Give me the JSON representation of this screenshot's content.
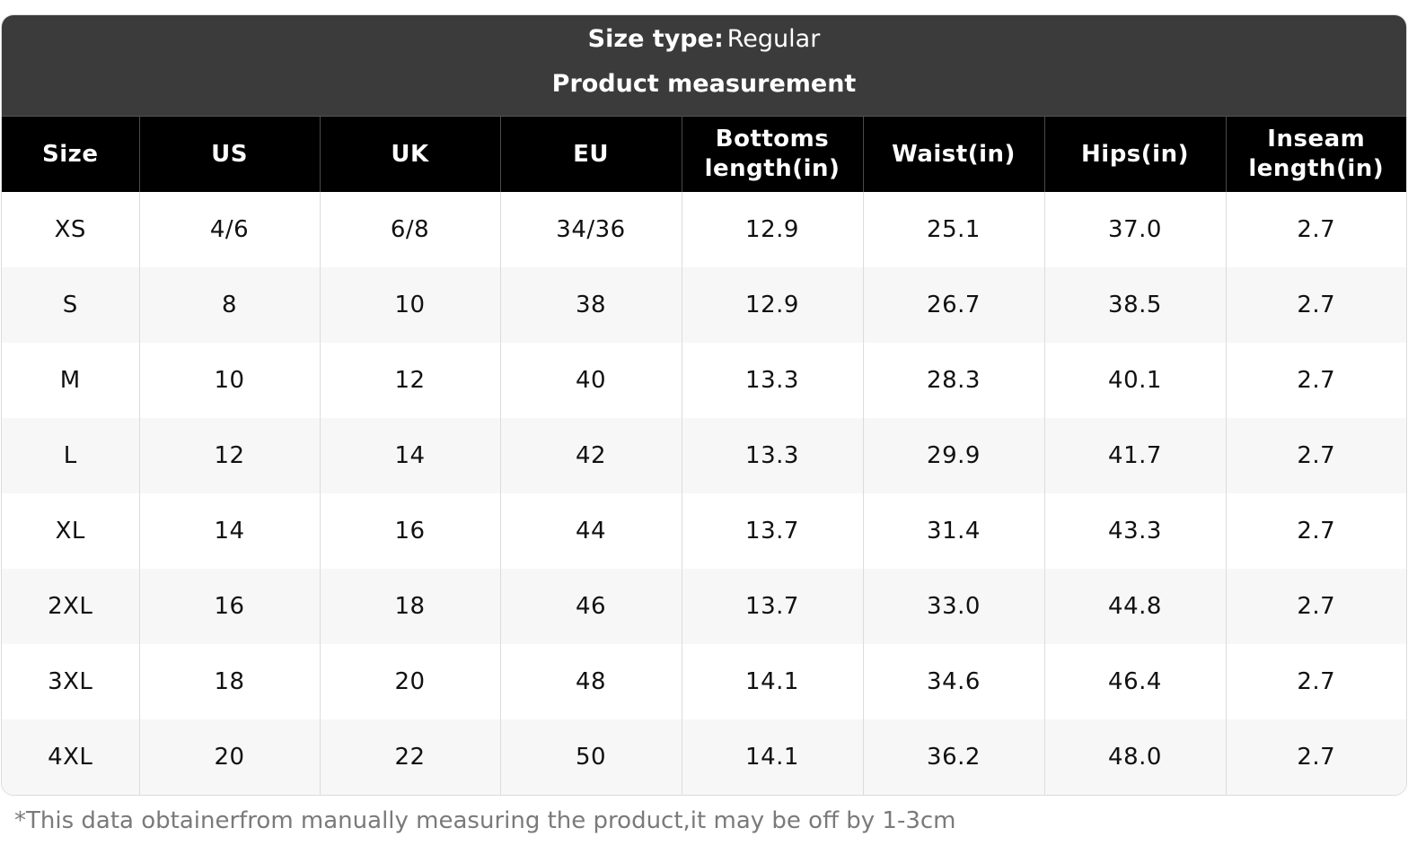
{
  "header": {
    "size_type_label": "Size type:",
    "size_type_value": "Regular",
    "title": "Product measurement"
  },
  "table": {
    "columns": [
      "Size",
      "US",
      "UK",
      "EU",
      "Bottoms length(in)",
      "Waist(in)",
      "Hips(in)",
      "Inseam length(in)"
    ],
    "rows": [
      [
        "XS",
        "4/6",
        "6/8",
        "34/36",
        "12.9",
        "25.1",
        "37.0",
        "2.7"
      ],
      [
        "S",
        "8",
        "10",
        "38",
        "12.9",
        "26.7",
        "38.5",
        "2.7"
      ],
      [
        "M",
        "10",
        "12",
        "40",
        "13.3",
        "28.3",
        "40.1",
        "2.7"
      ],
      [
        "L",
        "12",
        "14",
        "42",
        "13.3",
        "29.9",
        "41.7",
        "2.7"
      ],
      [
        "XL",
        "14",
        "16",
        "44",
        "13.7",
        "31.4",
        "43.3",
        "2.7"
      ],
      [
        "2XL",
        "16",
        "18",
        "46",
        "13.7",
        "33.0",
        "44.8",
        "2.7"
      ],
      [
        "3XL",
        "18",
        "20",
        "48",
        "14.1",
        "34.6",
        "46.4",
        "2.7"
      ],
      [
        "4XL",
        "20",
        "22",
        "50",
        "14.1",
        "36.2",
        "48.0",
        "2.7"
      ]
    ]
  },
  "footnote": "*This data obtainerfrom manually measuring the product,it may be off by 1-3cm",
  "colors": {
    "banner_bg": "#3b3b3b",
    "header_bg": "#000000",
    "row_alt_bg": "#f7f7f7",
    "footnote_text": "#7a7a7a"
  }
}
